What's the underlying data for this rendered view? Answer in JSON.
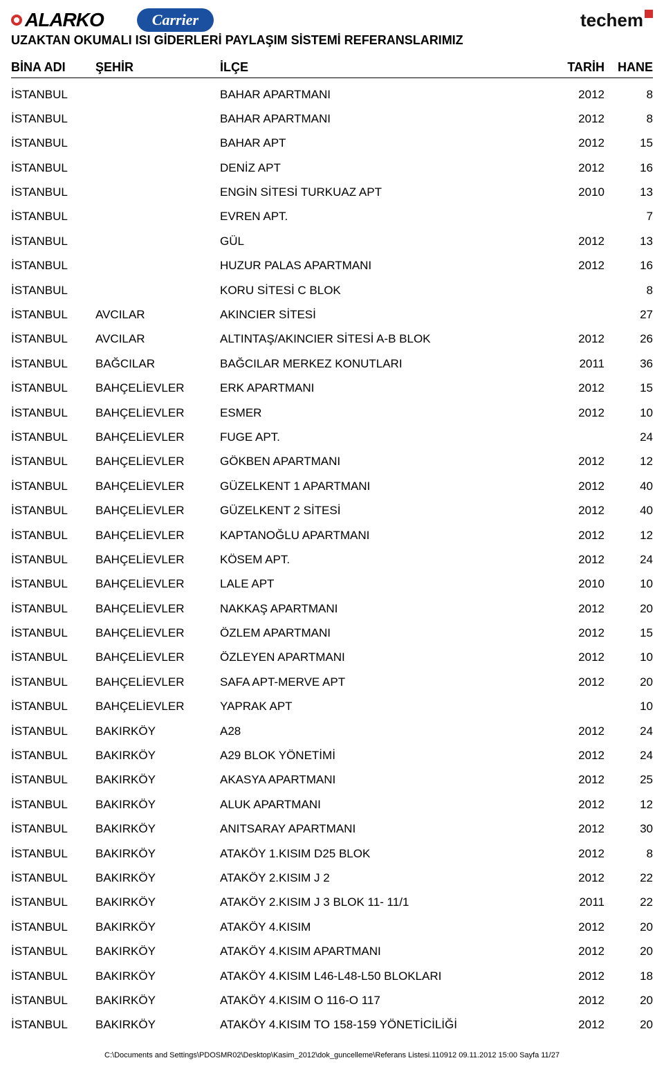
{
  "logos": {
    "alarko_text": "ALARKO",
    "carrier_text": "Carrier",
    "techem_text": "techem"
  },
  "doc_title": "UZAKTAN OKUMALI ISI GİDERLERİ PAYLAŞIM SİSTEMİ REFERANSLARIMIZ",
  "columns": {
    "bina": "BİNA ADI",
    "sehir": "ŞEHİR",
    "ilce": "İLÇE",
    "tarih": "TARİH",
    "hane": "HANE"
  },
  "rows": [
    {
      "bina": "İSTANBUL",
      "sehir": "",
      "ilce": "BAHAR APARTMANI",
      "tarih": "2012",
      "hane": "8"
    },
    {
      "bina": "İSTANBUL",
      "sehir": "",
      "ilce": "BAHAR APARTMANI",
      "tarih": "2012",
      "hane": "8"
    },
    {
      "bina": "İSTANBUL",
      "sehir": "",
      "ilce": "BAHAR APT",
      "tarih": "2012",
      "hane": "15"
    },
    {
      "bina": "İSTANBUL",
      "sehir": "",
      "ilce": "DENİZ APT",
      "tarih": "2012",
      "hane": "16"
    },
    {
      "bina": "İSTANBUL",
      "sehir": "",
      "ilce": "ENGİN SİTESİ TURKUAZ APT",
      "tarih": "2010",
      "hane": "13"
    },
    {
      "bina": "İSTANBUL",
      "sehir": "",
      "ilce": "EVREN APT.",
      "tarih": "",
      "hane": "7"
    },
    {
      "bina": "İSTANBUL",
      "sehir": "",
      "ilce": "GÜL",
      "tarih": "2012",
      "hane": "13"
    },
    {
      "bina": "İSTANBUL",
      "sehir": "",
      "ilce": "HUZUR PALAS APARTMANI",
      "tarih": "2012",
      "hane": "16"
    },
    {
      "bina": "İSTANBUL",
      "sehir": "",
      "ilce": "KORU SİTESİ  C BLOK",
      "tarih": "",
      "hane": "8"
    },
    {
      "bina": "İSTANBUL",
      "sehir": "AVCILAR",
      "ilce": "AKINCIER SİTESİ",
      "tarih": "",
      "hane": "27"
    },
    {
      "bina": "İSTANBUL",
      "sehir": "AVCILAR",
      "ilce": "ALTINTAŞ/AKINCIER SİTESİ A-B BLOK",
      "tarih": "2012",
      "hane": "26"
    },
    {
      "bina": "İSTANBUL",
      "sehir": "BAĞCILAR",
      "ilce": "BAĞCILAR MERKEZ KONUTLARI",
      "tarih": "2011",
      "hane": "36"
    },
    {
      "bina": "İSTANBUL",
      "sehir": "BAHÇELİEVLER",
      "ilce": "ERK APARTMANI",
      "tarih": "2012",
      "hane": "15"
    },
    {
      "bina": "İSTANBUL",
      "sehir": "BAHÇELİEVLER",
      "ilce": "ESMER",
      "tarih": "2012",
      "hane": "10"
    },
    {
      "bina": "İSTANBUL",
      "sehir": "BAHÇELİEVLER",
      "ilce": "FUGE APT.",
      "tarih": "",
      "hane": "24"
    },
    {
      "bina": "İSTANBUL",
      "sehir": "BAHÇELİEVLER",
      "ilce": "GÖKBEN APARTMANI",
      "tarih": "2012",
      "hane": "12"
    },
    {
      "bina": "İSTANBUL",
      "sehir": "BAHÇELİEVLER",
      "ilce": "GÜZELKENT 1 APARTMANI",
      "tarih": "2012",
      "hane": "40"
    },
    {
      "bina": "İSTANBUL",
      "sehir": "BAHÇELİEVLER",
      "ilce": "GÜZELKENT 2 SİTESİ",
      "tarih": "2012",
      "hane": "40"
    },
    {
      "bina": "İSTANBUL",
      "sehir": "BAHÇELİEVLER",
      "ilce": "KAPTANOĞLU APARTMANI",
      "tarih": "2012",
      "hane": "12"
    },
    {
      "bina": "İSTANBUL",
      "sehir": "BAHÇELİEVLER",
      "ilce": "KÖSEM APT.",
      "tarih": "2012",
      "hane": "24"
    },
    {
      "bina": "İSTANBUL",
      "sehir": "BAHÇELİEVLER",
      "ilce": "LALE APT",
      "tarih": "2010",
      "hane": "10"
    },
    {
      "bina": "İSTANBUL",
      "sehir": "BAHÇELİEVLER",
      "ilce": "NAKKAŞ APARTMANI",
      "tarih": "2012",
      "hane": "20"
    },
    {
      "bina": "İSTANBUL",
      "sehir": "BAHÇELİEVLER",
      "ilce": "ÖZLEM APARTMANI",
      "tarih": "2012",
      "hane": "15"
    },
    {
      "bina": "İSTANBUL",
      "sehir": "BAHÇELİEVLER",
      "ilce": "ÖZLEYEN APARTMANI",
      "tarih": "2012",
      "hane": "10"
    },
    {
      "bina": "İSTANBUL",
      "sehir": "BAHÇELİEVLER",
      "ilce": "SAFA APT-MERVE APT",
      "tarih": "2012",
      "hane": "20"
    },
    {
      "bina": "İSTANBUL",
      "sehir": "BAHÇELİEVLER",
      "ilce": "YAPRAK APT",
      "tarih": "",
      "hane": "10"
    },
    {
      "bina": "İSTANBUL",
      "sehir": "BAKIRKÖY",
      "ilce": "A28",
      "tarih": "2012",
      "hane": "24"
    },
    {
      "bina": "İSTANBUL",
      "sehir": "BAKIRKÖY",
      "ilce": "A29 BLOK YÖNETİMİ",
      "tarih": "2012",
      "hane": "24"
    },
    {
      "bina": "İSTANBUL",
      "sehir": "BAKIRKÖY",
      "ilce": "AKASYA APARTMANI",
      "tarih": "2012",
      "hane": "25"
    },
    {
      "bina": "İSTANBUL",
      "sehir": "BAKIRKÖY",
      "ilce": "ALUK APARTMANI",
      "tarih": "2012",
      "hane": "12"
    },
    {
      "bina": "İSTANBUL",
      "sehir": "BAKIRKÖY",
      "ilce": "ANITSARAY APARTMANI",
      "tarih": "2012",
      "hane": "30"
    },
    {
      "bina": "İSTANBUL",
      "sehir": "BAKIRKÖY",
      "ilce": "ATAKÖY 1.KISIM D25 BLOK",
      "tarih": "2012",
      "hane": "8"
    },
    {
      "bina": "İSTANBUL",
      "sehir": "BAKIRKÖY",
      "ilce": "ATAKÖY 2.KISIM J 2",
      "tarih": "2012",
      "hane": "22"
    },
    {
      "bina": "İSTANBUL",
      "sehir": "BAKIRKÖY",
      "ilce": "ATAKÖY 2.KISIM J 3 BLOK 11- 11/1",
      "tarih": "2011",
      "hane": "22"
    },
    {
      "bina": "İSTANBUL",
      "sehir": "BAKIRKÖY",
      "ilce": "ATAKÖY 4.KISIM",
      "tarih": "2012",
      "hane": "20"
    },
    {
      "bina": "İSTANBUL",
      "sehir": "BAKIRKÖY",
      "ilce": "ATAKÖY 4.KISIM APARTMANI",
      "tarih": "2012",
      "hane": "20"
    },
    {
      "bina": "İSTANBUL",
      "sehir": "BAKIRKÖY",
      "ilce": "ATAKÖY 4.KISIM L46-L48-L50 BLOKLARI",
      "tarih": "2012",
      "hane": "18"
    },
    {
      "bina": "İSTANBUL",
      "sehir": "BAKIRKÖY",
      "ilce": "ATAKÖY 4.KISIM O 116-O 117",
      "tarih": "2012",
      "hane": "20"
    },
    {
      "bina": "İSTANBUL",
      "sehir": "BAKIRKÖY",
      "ilce": "ATAKÖY 4.KISIM TO 158-159 YÖNETİCİLİĞİ",
      "tarih": "2012",
      "hane": "20"
    }
  ],
  "footer": "C:\\Documents and Settings\\PDOSMR02\\Desktop\\Kasim_2012\\dok_guncelleme\\Referans Listesi.110912  09.11.2012  15:00 Sayfa 11/27"
}
